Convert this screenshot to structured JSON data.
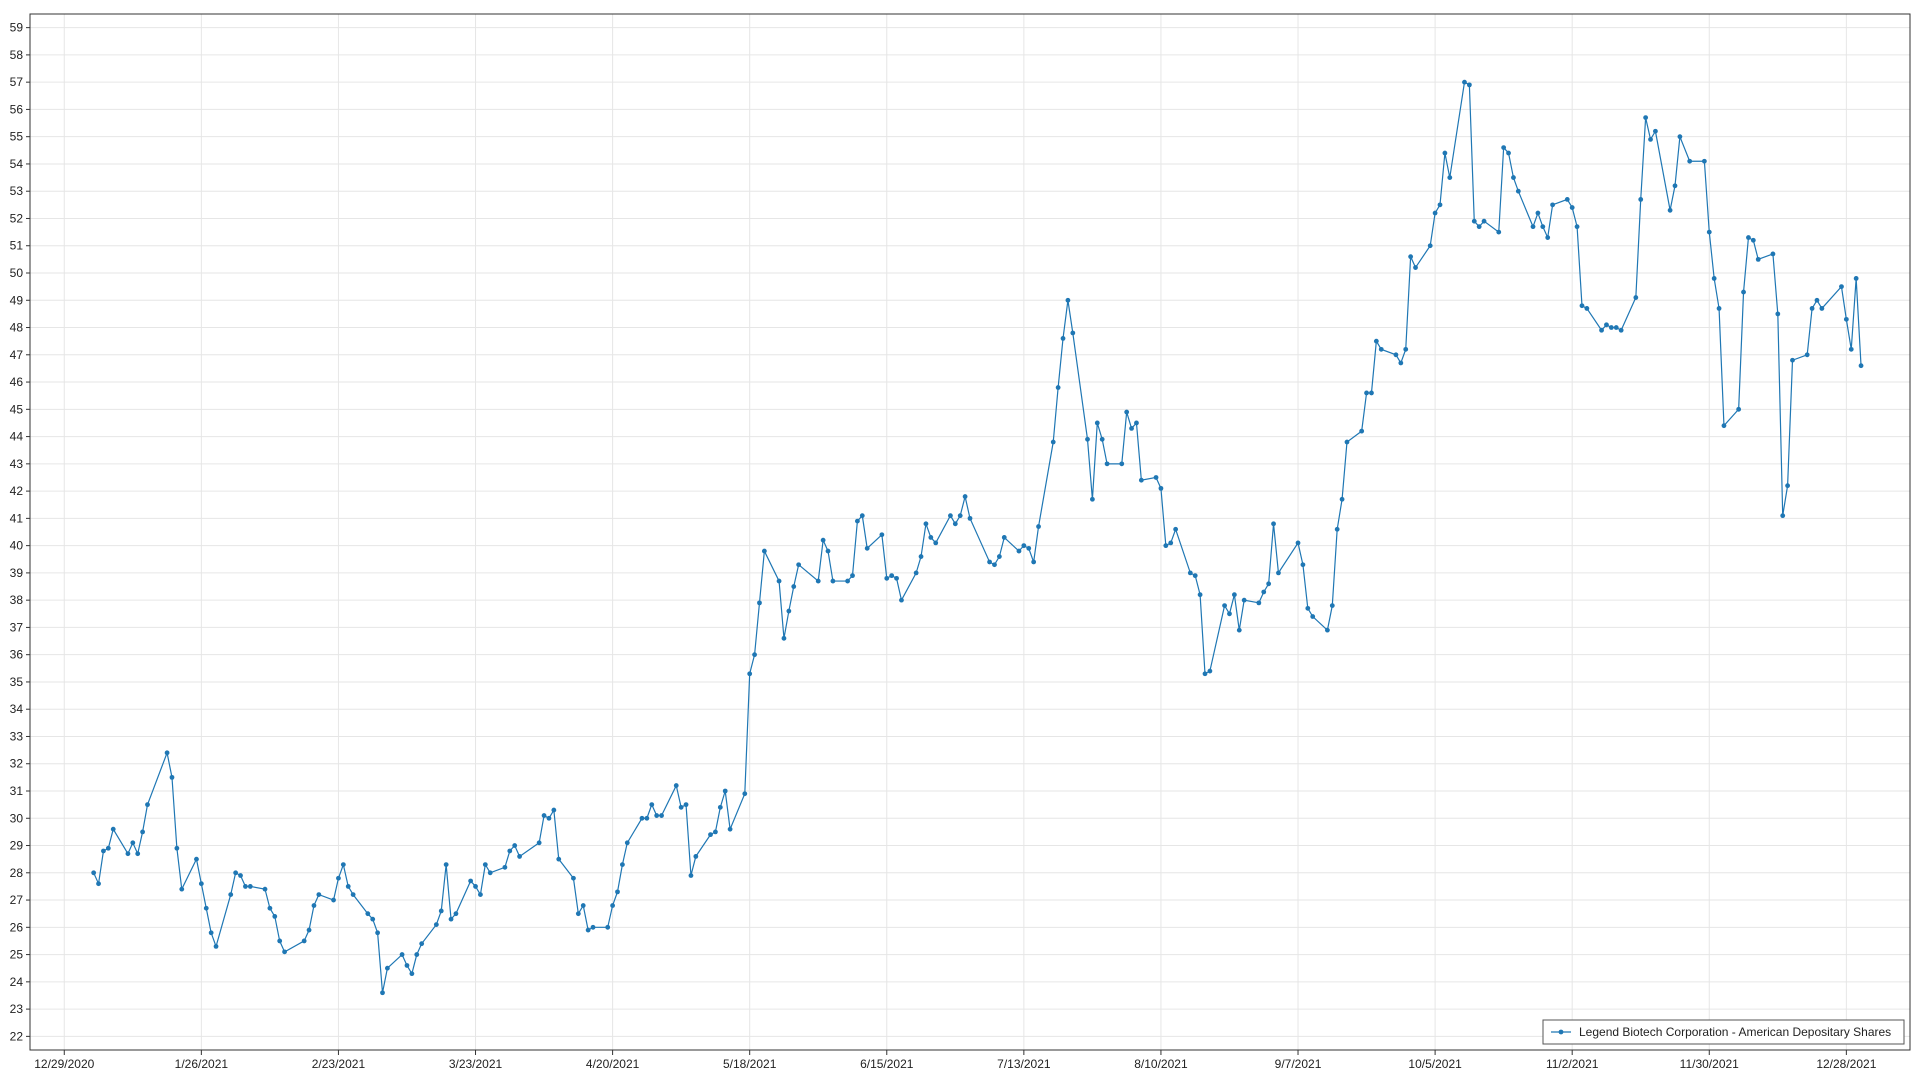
{
  "chart_data": {
    "type": "line",
    "title": "",
    "xlabel": "",
    "ylabel": "",
    "grid": true,
    "legend_position": "bottom-right",
    "x_range": [
      "2020-12-22",
      "2022-01-10"
    ],
    "ylim": [
      21.5,
      59.5
    ],
    "y_ticks": [
      22,
      23,
      24,
      25,
      26,
      27,
      28,
      29,
      30,
      31,
      32,
      33,
      34,
      35,
      36,
      37,
      38,
      39,
      40,
      41,
      42,
      43,
      44,
      45,
      46,
      47,
      48,
      49,
      50,
      51,
      52,
      53,
      54,
      55,
      56,
      57,
      58,
      59
    ],
    "x_ticks": [
      {
        "date": "2020-12-29",
        "label": "12/29/2020"
      },
      {
        "date": "2021-01-26",
        "label": "1/26/2021"
      },
      {
        "date": "2021-02-23",
        "label": "2/23/2021"
      },
      {
        "date": "2021-03-23",
        "label": "3/23/2021"
      },
      {
        "date": "2021-04-20",
        "label": "4/20/2021"
      },
      {
        "date": "2021-05-18",
        "label": "5/18/2021"
      },
      {
        "date": "2021-06-15",
        "label": "6/15/2021"
      },
      {
        "date": "2021-07-13",
        "label": "7/13/2021"
      },
      {
        "date": "2021-08-10",
        "label": "8/10/2021"
      },
      {
        "date": "2021-09-07",
        "label": "9/7/2021"
      },
      {
        "date": "2021-10-05",
        "label": "10/5/2021"
      },
      {
        "date": "2021-11-02",
        "label": "11/2/2021"
      },
      {
        "date": "2021-11-30",
        "label": "11/30/2021"
      },
      {
        "date": "2021-12-28",
        "label": "12/28/2021"
      }
    ],
    "series": [
      {
        "name": "Legend Biotech Corporation - American Depositary Shares",
        "color": "#1f77b4",
        "points": [
          [
            "2021-01-04",
            28.0
          ],
          [
            "2021-01-05",
            27.6
          ],
          [
            "2021-01-06",
            28.8
          ],
          [
            "2021-01-07",
            28.9
          ],
          [
            "2021-01-08",
            29.6
          ],
          [
            "2021-01-11",
            28.7
          ],
          [
            "2021-01-12",
            29.1
          ],
          [
            "2021-01-13",
            28.7
          ],
          [
            "2021-01-14",
            29.5
          ],
          [
            "2021-01-15",
            30.5
          ],
          [
            "2021-01-19",
            32.4
          ],
          [
            "2021-01-20",
            31.5
          ],
          [
            "2021-01-21",
            28.9
          ],
          [
            "2021-01-22",
            27.4
          ],
          [
            "2021-01-25",
            28.5
          ],
          [
            "2021-01-26",
            27.6
          ],
          [
            "2021-01-27",
            26.7
          ],
          [
            "2021-01-28",
            25.8
          ],
          [
            "2021-01-29",
            25.3
          ],
          [
            "2021-02-01",
            27.2
          ],
          [
            "2021-02-02",
            28.0
          ],
          [
            "2021-02-03",
            27.9
          ],
          [
            "2021-02-04",
            27.5
          ],
          [
            "2021-02-05",
            27.5
          ],
          [
            "2021-02-08",
            27.4
          ],
          [
            "2021-02-09",
            26.7
          ],
          [
            "2021-02-10",
            26.4
          ],
          [
            "2021-02-11",
            25.5
          ],
          [
            "2021-02-12",
            25.1
          ],
          [
            "2021-02-16",
            25.5
          ],
          [
            "2021-02-17",
            25.9
          ],
          [
            "2021-02-18",
            26.8
          ],
          [
            "2021-02-19",
            27.2
          ],
          [
            "2021-02-22",
            27.0
          ],
          [
            "2021-02-23",
            27.8
          ],
          [
            "2021-02-24",
            28.3
          ],
          [
            "2021-02-25",
            27.5
          ],
          [
            "2021-02-26",
            27.2
          ],
          [
            "2021-03-01",
            26.5
          ],
          [
            "2021-03-02",
            26.3
          ],
          [
            "2021-03-03",
            25.8
          ],
          [
            "2021-03-04",
            23.6
          ],
          [
            "2021-03-05",
            24.5
          ],
          [
            "2021-03-08",
            25.0
          ],
          [
            "2021-03-09",
            24.6
          ],
          [
            "2021-03-10",
            24.3
          ],
          [
            "2021-03-11",
            25.0
          ],
          [
            "2021-03-12",
            25.4
          ],
          [
            "2021-03-15",
            26.1
          ],
          [
            "2021-03-16",
            26.6
          ],
          [
            "2021-03-17",
            28.3
          ],
          [
            "2021-03-18",
            26.3
          ],
          [
            "2021-03-19",
            26.5
          ],
          [
            "2021-03-22",
            27.7
          ],
          [
            "2021-03-23",
            27.5
          ],
          [
            "2021-03-24",
            27.2
          ],
          [
            "2021-03-25",
            28.3
          ],
          [
            "2021-03-26",
            28.0
          ],
          [
            "2021-03-29",
            28.2
          ],
          [
            "2021-03-30",
            28.8
          ],
          [
            "2021-03-31",
            29.0
          ],
          [
            "2021-04-01",
            28.6
          ],
          [
            "2021-04-05",
            29.1
          ],
          [
            "2021-04-06",
            30.1
          ],
          [
            "2021-04-07",
            30.0
          ],
          [
            "2021-04-08",
            30.3
          ],
          [
            "2021-04-09",
            28.5
          ],
          [
            "2021-04-12",
            27.8
          ],
          [
            "2021-04-13",
            26.5
          ],
          [
            "2021-04-14",
            26.8
          ],
          [
            "2021-04-15",
            25.9
          ],
          [
            "2021-04-16",
            26.0
          ],
          [
            "2021-04-19",
            26.0
          ],
          [
            "2021-04-20",
            26.8
          ],
          [
            "2021-04-21",
            27.3
          ],
          [
            "2021-04-22",
            28.3
          ],
          [
            "2021-04-23",
            29.1
          ],
          [
            "2021-04-26",
            30.0
          ],
          [
            "2021-04-27",
            30.0
          ],
          [
            "2021-04-28",
            30.5
          ],
          [
            "2021-04-29",
            30.1
          ],
          [
            "2021-04-30",
            30.1
          ],
          [
            "2021-05-03",
            31.2
          ],
          [
            "2021-05-04",
            30.4
          ],
          [
            "2021-05-05",
            30.5
          ],
          [
            "2021-05-06",
            27.9
          ],
          [
            "2021-05-07",
            28.6
          ],
          [
            "2021-05-10",
            29.4
          ],
          [
            "2021-05-11",
            29.5
          ],
          [
            "2021-05-12",
            30.4
          ],
          [
            "2021-05-13",
            31.0
          ],
          [
            "2021-05-14",
            29.6
          ],
          [
            "2021-05-17",
            30.9
          ],
          [
            "2021-05-18",
            35.3
          ],
          [
            "2021-05-19",
            36.0
          ],
          [
            "2021-05-20",
            37.9
          ],
          [
            "2021-05-21",
            39.8
          ],
          [
            "2021-05-24",
            38.7
          ],
          [
            "2021-05-25",
            36.6
          ],
          [
            "2021-05-26",
            37.6
          ],
          [
            "2021-05-27",
            38.5
          ],
          [
            "2021-05-28",
            39.3
          ],
          [
            "2021-06-01",
            38.7
          ],
          [
            "2021-06-02",
            40.2
          ],
          [
            "2021-06-03",
            39.8
          ],
          [
            "2021-06-04",
            38.7
          ],
          [
            "2021-06-07",
            38.7
          ],
          [
            "2021-06-08",
            38.9
          ],
          [
            "2021-06-09",
            40.9
          ],
          [
            "2021-06-10",
            41.1
          ],
          [
            "2021-06-11",
            39.9
          ],
          [
            "2021-06-14",
            40.4
          ],
          [
            "2021-06-15",
            38.8
          ],
          [
            "2021-06-16",
            38.9
          ],
          [
            "2021-06-17",
            38.8
          ],
          [
            "2021-06-18",
            38.0
          ],
          [
            "2021-06-21",
            39.0
          ],
          [
            "2021-06-22",
            39.6
          ],
          [
            "2021-06-23",
            40.8
          ],
          [
            "2021-06-24",
            40.3
          ],
          [
            "2021-06-25",
            40.1
          ],
          [
            "2021-06-28",
            41.1
          ],
          [
            "2021-06-29",
            40.8
          ],
          [
            "2021-06-30",
            41.1
          ],
          [
            "2021-07-01",
            41.8
          ],
          [
            "2021-07-02",
            41.0
          ],
          [
            "2021-07-06",
            39.4
          ],
          [
            "2021-07-07",
            39.3
          ],
          [
            "2021-07-08",
            39.6
          ],
          [
            "2021-07-09",
            40.3
          ],
          [
            "2021-07-12",
            39.8
          ],
          [
            "2021-07-13",
            40.0
          ],
          [
            "2021-07-14",
            39.9
          ],
          [
            "2021-07-15",
            39.4
          ],
          [
            "2021-07-16",
            40.7
          ],
          [
            "2021-07-19",
            43.8
          ],
          [
            "2021-07-20",
            45.8
          ],
          [
            "2021-07-21",
            47.6
          ],
          [
            "2021-07-22",
            49.0
          ],
          [
            "2021-07-23",
            47.8
          ],
          [
            "2021-07-26",
            43.9
          ],
          [
            "2021-07-27",
            41.7
          ],
          [
            "2021-07-28",
            44.5
          ],
          [
            "2021-07-29",
            43.9
          ],
          [
            "2021-07-30",
            43.0
          ],
          [
            "2021-08-02",
            43.0
          ],
          [
            "2021-08-03",
            44.9
          ],
          [
            "2021-08-04",
            44.3
          ],
          [
            "2021-08-05",
            44.5
          ],
          [
            "2021-08-06",
            42.4
          ],
          [
            "2021-08-09",
            42.5
          ],
          [
            "2021-08-10",
            42.1
          ],
          [
            "2021-08-11",
            40.0
          ],
          [
            "2021-08-12",
            40.1
          ],
          [
            "2021-08-13",
            40.6
          ],
          [
            "2021-08-16",
            39.0
          ],
          [
            "2021-08-17",
            38.9
          ],
          [
            "2021-08-18",
            38.2
          ],
          [
            "2021-08-19",
            35.3
          ],
          [
            "2021-08-20",
            35.4
          ],
          [
            "2021-08-23",
            37.8
          ],
          [
            "2021-08-24",
            37.5
          ],
          [
            "2021-08-25",
            38.2
          ],
          [
            "2021-08-26",
            36.9
          ],
          [
            "2021-08-27",
            38.0
          ],
          [
            "2021-08-30",
            37.9
          ],
          [
            "2021-08-31",
            38.3
          ],
          [
            "2021-09-01",
            38.6
          ],
          [
            "2021-09-02",
            40.8
          ],
          [
            "2021-09-03",
            39.0
          ],
          [
            "2021-09-07",
            40.1
          ],
          [
            "2021-09-08",
            39.3
          ],
          [
            "2021-09-09",
            37.7
          ],
          [
            "2021-09-10",
            37.4
          ],
          [
            "2021-09-13",
            36.9
          ],
          [
            "2021-09-14",
            37.8
          ],
          [
            "2021-09-15",
            40.6
          ],
          [
            "2021-09-16",
            41.7
          ],
          [
            "2021-09-17",
            43.8
          ],
          [
            "2021-09-20",
            44.2
          ],
          [
            "2021-09-21",
            45.6
          ],
          [
            "2021-09-22",
            45.6
          ],
          [
            "2021-09-23",
            47.5
          ],
          [
            "2021-09-24",
            47.2
          ],
          [
            "2021-09-27",
            47.0
          ],
          [
            "2021-09-28",
            46.7
          ],
          [
            "2021-09-29",
            47.2
          ],
          [
            "2021-09-30",
            50.6
          ],
          [
            "2021-10-01",
            50.2
          ],
          [
            "2021-10-04",
            51.0
          ],
          [
            "2021-10-05",
            52.2
          ],
          [
            "2021-10-06",
            52.5
          ],
          [
            "2021-10-07",
            54.4
          ],
          [
            "2021-10-08",
            53.5
          ],
          [
            "2021-10-11",
            57.0
          ],
          [
            "2021-10-12",
            56.9
          ],
          [
            "2021-10-13",
            51.9
          ],
          [
            "2021-10-14",
            51.7
          ],
          [
            "2021-10-15",
            51.9
          ],
          [
            "2021-10-18",
            51.5
          ],
          [
            "2021-10-19",
            54.6
          ],
          [
            "2021-10-20",
            54.4
          ],
          [
            "2021-10-21",
            53.5
          ],
          [
            "2021-10-22",
            53.0
          ],
          [
            "2021-10-25",
            51.7
          ],
          [
            "2021-10-26",
            52.2
          ],
          [
            "2021-10-27",
            51.7
          ],
          [
            "2021-10-28",
            51.3
          ],
          [
            "2021-10-29",
            52.5
          ],
          [
            "2021-11-01",
            52.7
          ],
          [
            "2021-11-02",
            52.4
          ],
          [
            "2021-11-03",
            51.7
          ],
          [
            "2021-11-04",
            48.8
          ],
          [
            "2021-11-05",
            48.7
          ],
          [
            "2021-11-08",
            47.9
          ],
          [
            "2021-11-09",
            48.1
          ],
          [
            "2021-11-10",
            48.0
          ],
          [
            "2021-11-11",
            48.0
          ],
          [
            "2021-11-12",
            47.9
          ],
          [
            "2021-11-15",
            49.1
          ],
          [
            "2021-11-16",
            52.7
          ],
          [
            "2021-11-17",
            55.7
          ],
          [
            "2021-11-18",
            54.9
          ],
          [
            "2021-11-19",
            55.2
          ],
          [
            "2021-11-22",
            52.3
          ],
          [
            "2021-11-23",
            53.2
          ],
          [
            "2021-11-24",
            55.0
          ],
          [
            "2021-11-26",
            54.1
          ],
          [
            "2021-11-29",
            54.1
          ],
          [
            "2021-11-30",
            51.5
          ],
          [
            "2021-12-01",
            49.8
          ],
          [
            "2021-12-02",
            48.7
          ],
          [
            "2021-12-03",
            44.4
          ],
          [
            "2021-12-06",
            45.0
          ],
          [
            "2021-12-07",
            49.3
          ],
          [
            "2021-12-08",
            51.3
          ],
          [
            "2021-12-09",
            51.2
          ],
          [
            "2021-12-10",
            50.5
          ],
          [
            "2021-12-13",
            50.7
          ],
          [
            "2021-12-14",
            48.5
          ],
          [
            "2021-12-15",
            41.1
          ],
          [
            "2021-12-16",
            42.2
          ],
          [
            "2021-12-17",
            46.8
          ],
          [
            "2021-12-20",
            47.0
          ],
          [
            "2021-12-21",
            48.7
          ],
          [
            "2021-12-22",
            49.0
          ],
          [
            "2021-12-23",
            48.7
          ],
          [
            "2021-12-27",
            49.5
          ],
          [
            "2021-12-28",
            48.3
          ],
          [
            "2021-12-29",
            47.2
          ],
          [
            "2021-12-30",
            49.8
          ],
          [
            "2021-12-31",
            46.6
          ]
        ]
      }
    ]
  }
}
